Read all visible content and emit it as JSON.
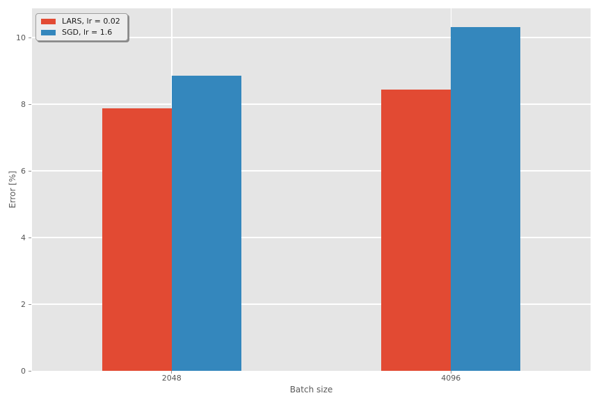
{
  "chart_data": {
    "type": "bar",
    "title": "",
    "xlabel": "Batch size",
    "ylabel": "Error [%]",
    "categories": [
      "2048",
      "4096"
    ],
    "series": [
      {
        "name": "LARS, lr = 0.02",
        "color": "#E24A33",
        "values": [
          7.87,
          8.44
        ]
      },
      {
        "name": "SGD, lr = 1.6",
        "color": "#3487BD",
        "values": [
          8.85,
          10.31
        ]
      }
    ],
    "ylim": [
      0,
      10.875
    ],
    "yticks": [
      0,
      2,
      4,
      6,
      8,
      10
    ],
    "grid": true,
    "legend_position": "upper left",
    "colors": {
      "plot_background": "#E5E5E5",
      "figure_background": "#FFFFFF",
      "gridline": "#FFFFFF",
      "tick_text": "#555555"
    }
  }
}
